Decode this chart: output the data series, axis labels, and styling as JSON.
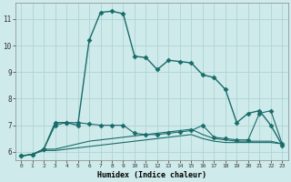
{
  "xlabel": "Humidex (Indice chaleur)",
  "background_color": "#ceeaea",
  "grid_color": "#aed4d4",
  "line_color": "#1a6b6b",
  "xlim": [
    -0.5,
    23.5
  ],
  "ylim": [
    5.7,
    11.6
  ],
  "yticks": [
    6,
    7,
    8,
    9,
    10,
    11
  ],
  "xticks": [
    0,
    1,
    2,
    3,
    4,
    5,
    6,
    7,
    8,
    9,
    10,
    11,
    12,
    13,
    14,
    15,
    16,
    17,
    18,
    19,
    20,
    21,
    22,
    23
  ],
  "series": [
    {
      "x": [
        0,
        1,
        2,
        3,
        4,
        5,
        6,
        7,
        8,
        9,
        10,
        11,
        12,
        13,
        14,
        15,
        16,
        17,
        18,
        19,
        20,
        21,
        22,
        23
      ],
      "y": [
        5.85,
        5.9,
        6.1,
        7.1,
        7.1,
        7.0,
        10.2,
        11.25,
        11.3,
        11.2,
        9.6,
        9.55,
        9.1,
        9.45,
        9.4,
        9.35,
        8.9,
        8.8,
        8.35,
        7.1,
        7.45,
        7.55,
        7.0,
        6.25
      ],
      "marker": true,
      "lw": 1.0
    },
    {
      "x": [
        0,
        1,
        2,
        3,
        4,
        5,
        6,
        7,
        8,
        9,
        10,
        11,
        12,
        13,
        14,
        15,
        16,
        17,
        18,
        19,
        20,
        21,
        22,
        23
      ],
      "y": [
        5.85,
        5.9,
        6.1,
        7.0,
        7.1,
        7.1,
        7.05,
        7.0,
        7.0,
        7.0,
        6.7,
        6.65,
        6.65,
        6.7,
        6.75,
        6.8,
        7.0,
        6.55,
        6.5,
        6.45,
        6.45,
        7.45,
        7.55,
        6.3
      ],
      "marker": true,
      "lw": 0.8
    },
    {
      "x": [
        0,
        1,
        2,
        3,
        4,
        5,
        6,
        7,
        8,
        9,
        10,
        11,
        12,
        13,
        14,
        15,
        16,
        17,
        18,
        19,
        20,
        21,
        22,
        23
      ],
      "y": [
        5.85,
        5.9,
        6.1,
        6.1,
        6.2,
        6.3,
        6.4,
        6.45,
        6.5,
        6.55,
        6.6,
        6.65,
        6.7,
        6.75,
        6.8,
        6.85,
        6.65,
        6.5,
        6.45,
        6.4,
        6.4,
        6.4,
        6.4,
        6.3
      ],
      "marker": false,
      "lw": 0.8
    },
    {
      "x": [
        0,
        1,
        2,
        3,
        4,
        5,
        6,
        7,
        8,
        9,
        10,
        11,
        12,
        13,
        14,
        15,
        16,
        17,
        18,
        19,
        20,
        21,
        22,
        23
      ],
      "y": [
        5.85,
        5.9,
        6.05,
        6.05,
        6.1,
        6.15,
        6.2,
        6.25,
        6.3,
        6.35,
        6.4,
        6.45,
        6.5,
        6.55,
        6.6,
        6.65,
        6.5,
        6.4,
        6.35,
        6.35,
        6.35,
        6.35,
        6.35,
        6.3
      ],
      "marker": false,
      "lw": 0.8
    }
  ]
}
